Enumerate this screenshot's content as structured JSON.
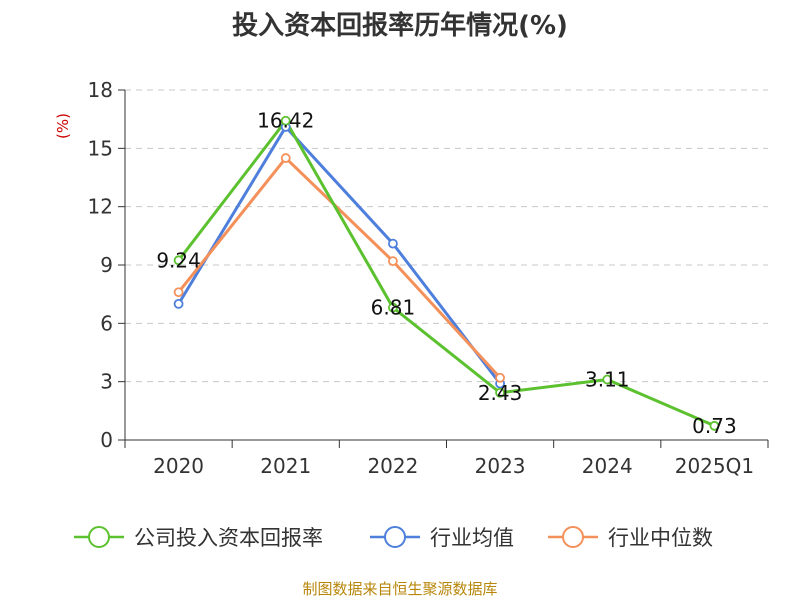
{
  "chart_data": {
    "type": "line",
    "title": "投入资本回报率历年情况(%)",
    "ylabel": "(%)",
    "xlabel": "",
    "categories": [
      "2020",
      "2021",
      "2022",
      "2023",
      "2024",
      "2025Q1"
    ],
    "ylim": [
      0,
      18
    ],
    "yticks": [
      0,
      3,
      6,
      9,
      12,
      15,
      18
    ],
    "grid": true,
    "legend_position": "bottom",
    "series": [
      {
        "name": "公司投入资本回报率",
        "color": "#5cc12f",
        "values": [
          9.24,
          16.42,
          6.81,
          2.43,
          3.11,
          0.73
        ],
        "labels": [
          "9.24",
          "16.42",
          "6.81",
          "2.43",
          "3.11",
          "0.73"
        ]
      },
      {
        "name": "行业均值",
        "color": "#4f7fdc",
        "values": [
          7.0,
          16.1,
          10.1,
          2.9,
          null,
          null
        ]
      },
      {
        "name": "行业中位数",
        "color": "#f4905a",
        "values": [
          7.6,
          14.5,
          9.2,
          3.2,
          null,
          null
        ]
      }
    ],
    "source": "制图数据来自恒生聚源数据库"
  }
}
